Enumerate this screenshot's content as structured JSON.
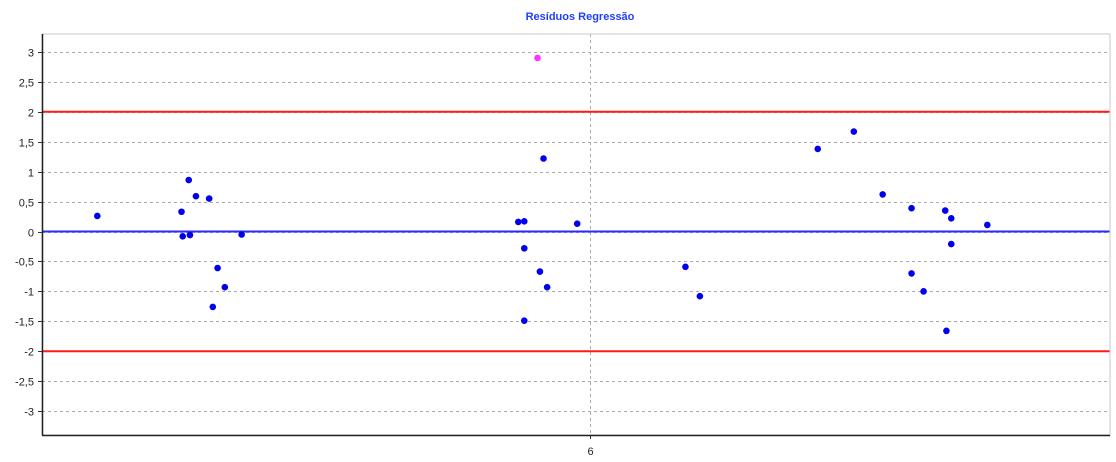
{
  "chart_data": {
    "type": "scatter",
    "title": "Resíduos Regressão",
    "xlabel": "",
    "ylabel": "",
    "xlim": [
      1.44,
      10.32
    ],
    "ylim": [
      -3.4,
      3.3
    ],
    "x_ticks": [
      6
    ],
    "x_tick_labels": [
      "6"
    ],
    "y_ticks": [
      3,
      2.5,
      2,
      1.5,
      1,
      0.5,
      0,
      -0.5,
      -1,
      -1.5,
      -2,
      -2.5,
      -3
    ],
    "y_tick_labels": [
      "3",
      "2,5",
      "2",
      "1,5",
      "1",
      "0,5",
      "0",
      "-0,5",
      "-1",
      "-1,5",
      "-2",
      "-2,5",
      "-3"
    ],
    "grid": true,
    "reference_lines": [
      {
        "y": 2,
        "color": "#ff1a1a"
      },
      {
        "y": -2,
        "color": "#ff1a1a"
      },
      {
        "y": 0,
        "color": "#2a2aff"
      }
    ],
    "series": [
      {
        "color": "#0000ee",
        "points": [
          [
            1.9,
            0.26
          ],
          [
            2.6,
            0.33
          ],
          [
            2.61,
            -0.08
          ],
          [
            2.66,
            0.86
          ],
          [
            2.67,
            -0.06
          ],
          [
            2.72,
            0.59
          ],
          [
            2.83,
            0.55
          ],
          [
            2.86,
            -1.26
          ],
          [
            2.9,
            -0.61
          ],
          [
            2.96,
            -0.93
          ],
          [
            3.1,
            -0.05
          ],
          [
            5.4,
            0.16
          ],
          [
            5.45,
            0.17
          ],
          [
            5.45,
            -0.28
          ],
          [
            5.45,
            -1.49
          ],
          [
            5.58,
            -0.67
          ],
          [
            5.61,
            1.22
          ],
          [
            5.64,
            -0.93
          ],
          [
            5.89,
            0.13
          ],
          [
            6.79,
            -0.59
          ],
          [
            6.91,
            -1.08
          ],
          [
            7.89,
            1.38
          ],
          [
            8.19,
            1.67
          ],
          [
            8.43,
            0.62
          ],
          [
            8.67,
            0.39
          ],
          [
            8.67,
            -0.7
          ],
          [
            8.77,
            -1.0
          ],
          [
            8.95,
            0.35
          ],
          [
            8.96,
            -1.66
          ],
          [
            9.0,
            0.22
          ],
          [
            9.0,
            -0.21
          ],
          [
            9.3,
            0.11
          ]
        ]
      },
      {
        "color": "#ff33ff",
        "points": [
          [
            5.56,
            2.9
          ]
        ]
      }
    ]
  }
}
